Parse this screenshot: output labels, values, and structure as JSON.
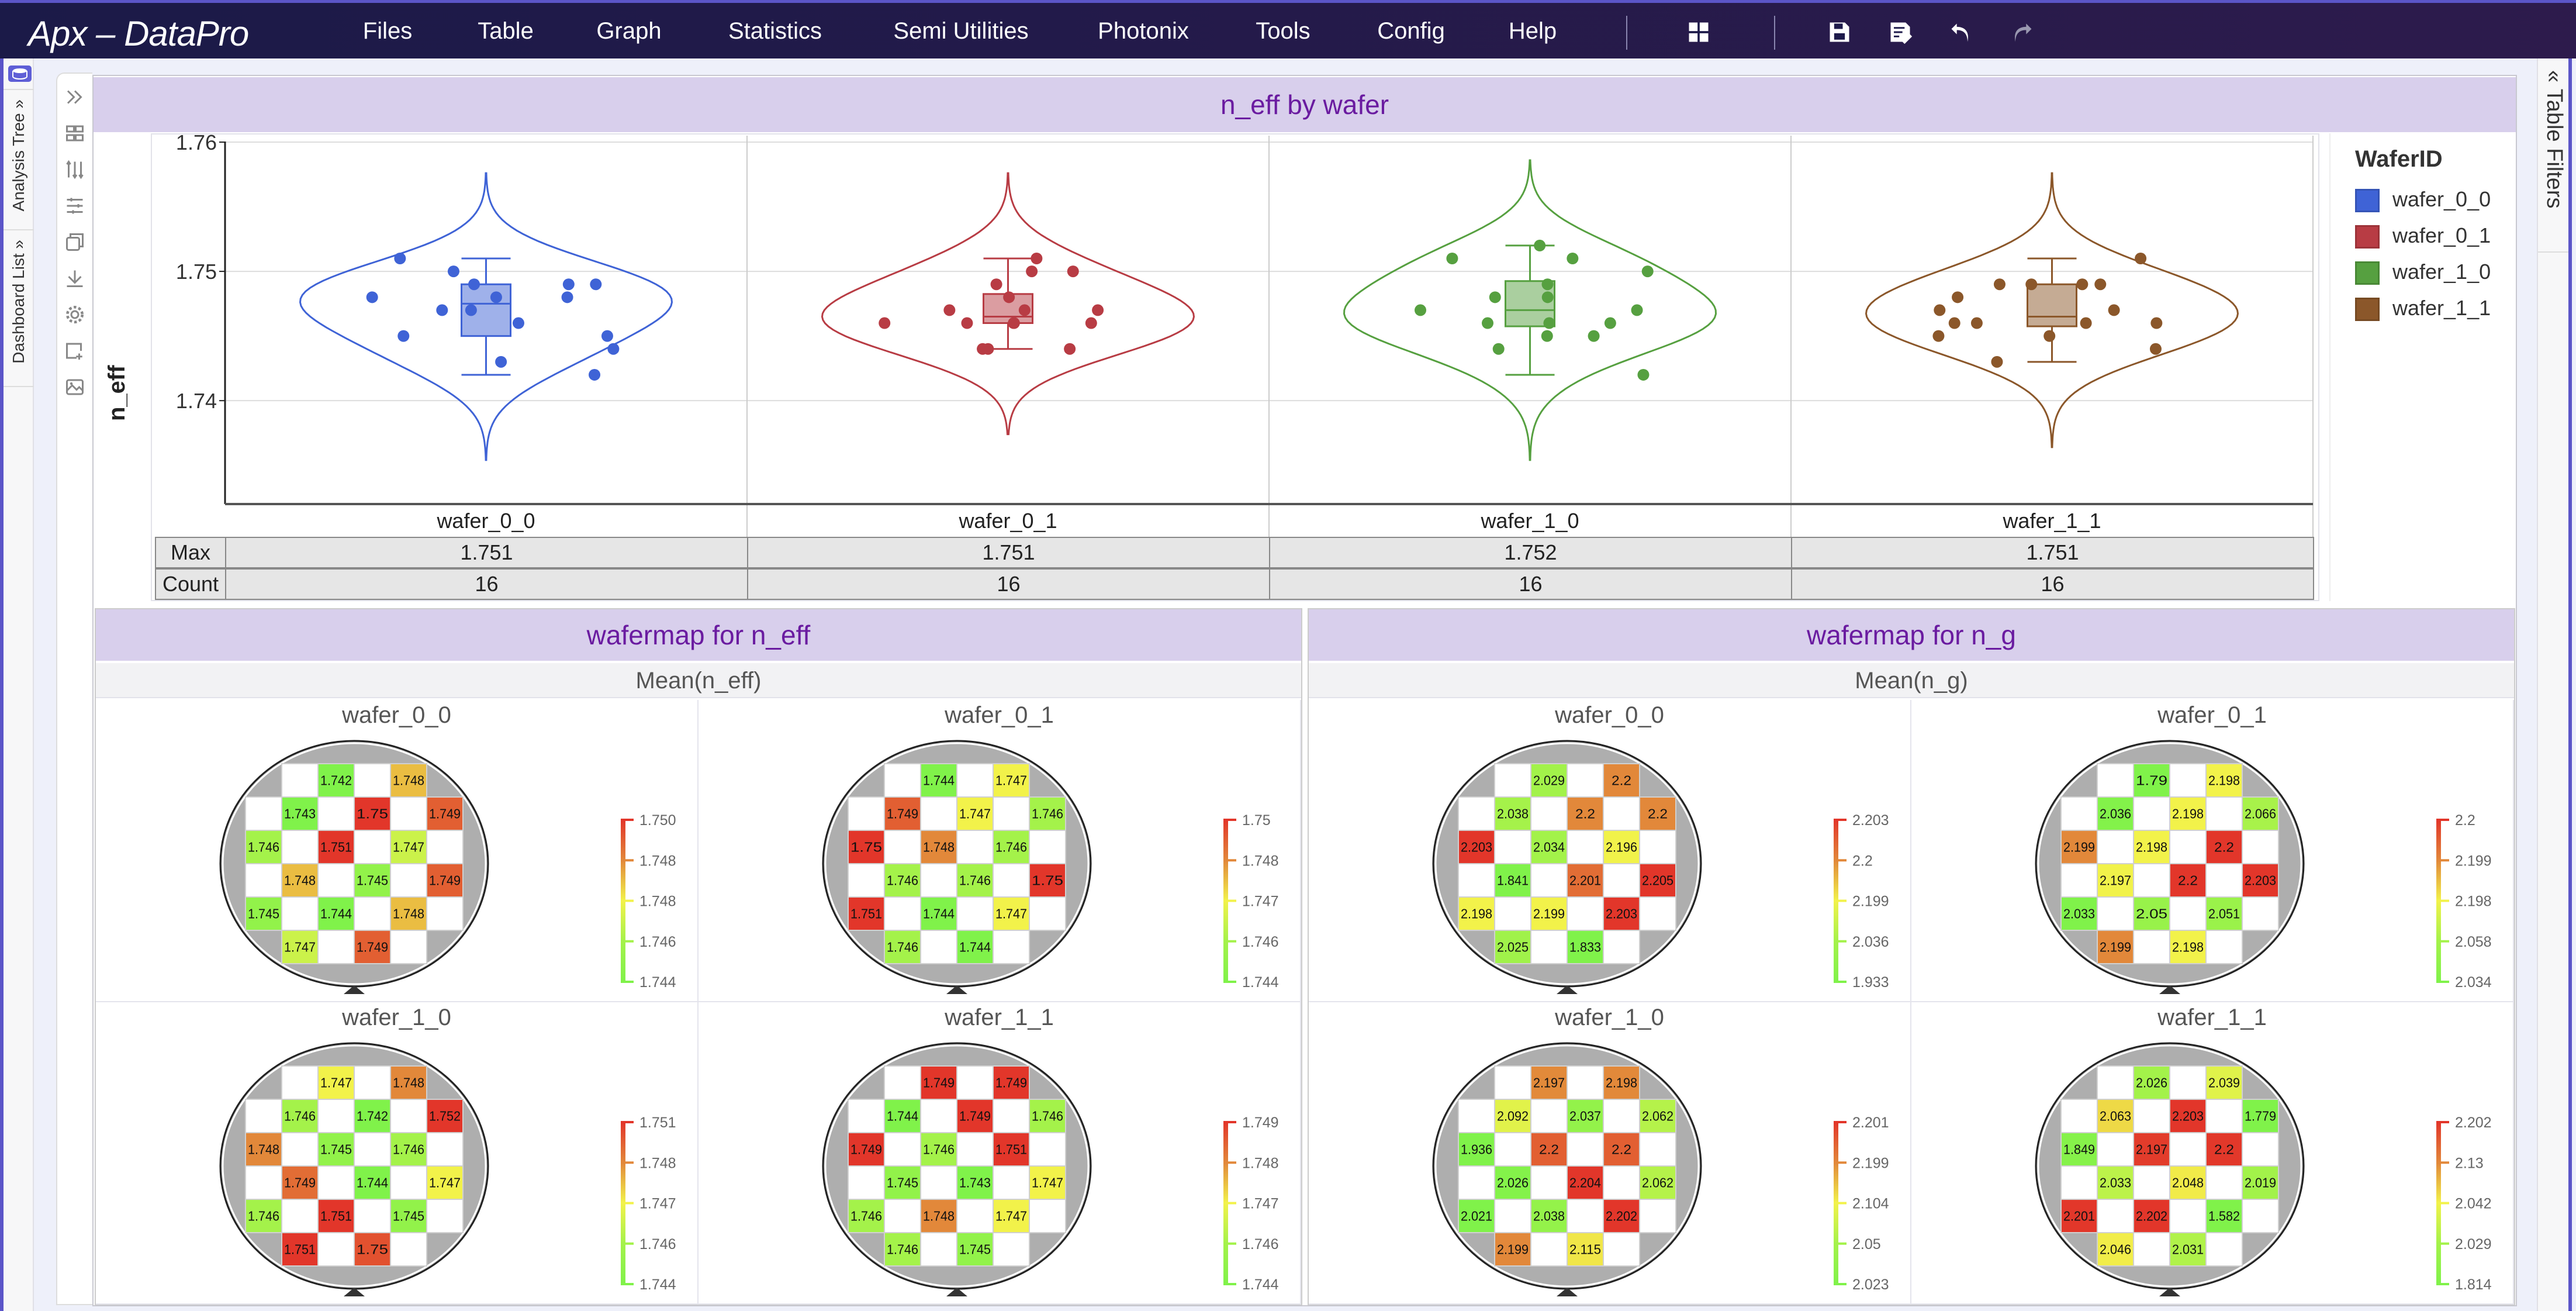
{
  "app": {
    "title": "Apx – DataPro",
    "menu": [
      "Files",
      "Table",
      "Graph",
      "Statistics",
      "Semi Utilities",
      "Photonix",
      "Tools",
      "Config",
      "Help"
    ],
    "toolbar_icons": [
      "layout-icon",
      "save-icon",
      "save-as-icon",
      "undo-icon",
      "redo-icon"
    ]
  },
  "left_tabs": {
    "analysis_tree": "Analysis Tree",
    "dashboard_list": "Dashboard List",
    "expand_glyph": "»"
  },
  "right_tabs": {
    "table_filters": "Table Filters",
    "collapse_glyph": "«"
  },
  "side_toolbar": [
    "expand-icon",
    "grid-icon",
    "sort-icon",
    "filter-icon",
    "copy-icon",
    "download-icon",
    "settings-icon",
    "add-chart-icon",
    "image-icon"
  ],
  "chart_data": [
    {
      "type": "violin",
      "title": "n_eff by wafer",
      "ylabel": "n_eff",
      "ylim": [
        1.732,
        1.7605
      ],
      "yticks": [
        1.74,
        1.75,
        1.76
      ],
      "ytick_labels": [
        "1.74",
        "1.75",
        "1.76"
      ],
      "grid": true,
      "legend_title": "WaferID",
      "legend_position": "right",
      "categories": [
        "wafer_0_0",
        "wafer_0_1",
        "wafer_1_0",
        "wafer_1_1"
      ],
      "series": [
        {
          "name": "wafer_0_0",
          "color": "#3f63d6",
          "values": [
            1.742,
            1.748,
            1.743,
            1.75,
            1.749,
            1.746,
            1.751,
            1.747,
            1.748,
            1.745,
            1.749,
            1.745,
            1.744,
            1.748,
            1.747,
            1.749
          ]
        },
        {
          "name": "wafer_0_1",
          "color": "#b83c44",
          "values": [
            1.744,
            1.747,
            1.749,
            1.747,
            1.746,
            1.75,
            1.748,
            1.746,
            1.746,
            1.746,
            1.75,
            1.751,
            1.744,
            1.747,
            1.746,
            1.744
          ]
        },
        {
          "name": "wafer_1_0",
          "color": "#56a040",
          "values": [
            1.747,
            1.748,
            1.746,
            1.742,
            1.752,
            1.748,
            1.745,
            1.746,
            1.749,
            1.744,
            1.747,
            1.746,
            1.751,
            1.745,
            1.751,
            1.75
          ]
        },
        {
          "name": "wafer_1_1",
          "color": "#8b572a",
          "values": [
            1.749,
            1.749,
            1.744,
            1.749,
            1.746,
            1.749,
            1.746,
            1.751,
            1.745,
            1.743,
            1.747,
            1.746,
            1.748,
            1.747,
            1.746,
            1.745
          ]
        }
      ],
      "summary_table": [
        {
          "label": "Max",
          "values": [
            "1.751",
            "1.751",
            "1.752",
            "1.751"
          ]
        },
        {
          "label": "Count",
          "values": [
            "16",
            "16",
            "16",
            "16"
          ]
        }
      ]
    },
    {
      "type": "heatmap",
      "title": "wafermap for n_eff",
      "subtitle": "Mean(n_eff)",
      "colorscale": [
        "#80f24a",
        "#a4f24a",
        "#f2f24a",
        "#e2883a",
        "#e2362a"
      ],
      "wafers": [
        {
          "name": "wafer_0_0",
          "colorbar_ticks": [
            "1.744",
            "1.746",
            "1.748",
            "1.748",
            "1.750"
          ],
          "grid": [
            [
              null,
              null,
              1.742,
              null,
              1.748,
              null
            ],
            [
              null,
              1.743,
              null,
              1.75,
              null,
              1.749
            ],
            [
              1.746,
              null,
              1.751,
              null,
              1.747,
              null
            ],
            [
              null,
              1.748,
              null,
              1.745,
              null,
              1.749
            ],
            [
              1.745,
              null,
              1.744,
              null,
              1.748,
              null
            ],
            [
              null,
              1.747,
              null,
              1.749,
              null,
              null
            ]
          ]
        },
        {
          "name": "wafer_0_1",
          "colorbar_ticks": [
            "1.744",
            "1.746",
            "1.747",
            "1.748",
            "1.75"
          ],
          "grid": [
            [
              null,
              null,
              1.744,
              null,
              1.747,
              null
            ],
            [
              null,
              1.749,
              null,
              1.747,
              null,
              1.746
            ],
            [
              1.75,
              null,
              1.748,
              null,
              1.746,
              null
            ],
            [
              null,
              1.746,
              null,
              1.746,
              null,
              1.75
            ],
            [
              1.751,
              null,
              1.744,
              null,
              1.747,
              null
            ],
            [
              null,
              1.746,
              null,
              1.744,
              null,
              null
            ]
          ]
        },
        {
          "name": "wafer_1_0",
          "colorbar_ticks": [
            "1.744",
            "1.746",
            "1.747",
            "1.748",
            "1.751"
          ],
          "grid": [
            [
              null,
              null,
              1.747,
              null,
              1.748,
              null
            ],
            [
              null,
              1.746,
              null,
              1.742,
              null,
              1.752
            ],
            [
              1.748,
              null,
              1.745,
              null,
              1.746,
              null
            ],
            [
              null,
              1.749,
              null,
              1.744,
              null,
              1.747
            ],
            [
              1.746,
              null,
              1.751,
              null,
              1.745,
              null
            ],
            [
              null,
              1.751,
              null,
              1.75,
              null,
              null
            ]
          ]
        },
        {
          "name": "wafer_1_1",
          "colorbar_ticks": [
            "1.744",
            "1.746",
            "1.747",
            "1.748",
            "1.749"
          ],
          "grid": [
            [
              null,
              null,
              1.749,
              null,
              1.749,
              null
            ],
            [
              null,
              1.744,
              null,
              1.749,
              null,
              1.746
            ],
            [
              1.749,
              null,
              1.746,
              null,
              1.751,
              null
            ],
            [
              null,
              1.745,
              null,
              1.743,
              null,
              1.747
            ],
            [
              1.746,
              null,
              1.748,
              null,
              1.747,
              null
            ],
            [
              null,
              1.746,
              null,
              1.745,
              null,
              null
            ]
          ]
        }
      ]
    },
    {
      "type": "heatmap",
      "title": "wafermap for n_g",
      "subtitle": "Mean(n_g)",
      "colorscale": [
        "#80f24a",
        "#a4f24a",
        "#f2f24a",
        "#e2883a",
        "#e2362a"
      ],
      "wafers": [
        {
          "name": "wafer_0_0",
          "colorbar_ticks": [
            "1.933",
            "2.036",
            "2.199",
            "2.2",
            "2.203"
          ],
          "grid": [
            [
              null,
              null,
              2.029,
              null,
              2.2,
              null
            ],
            [
              null,
              2.038,
              null,
              2.2,
              null,
              2.2
            ],
            [
              2.203,
              null,
              2.034,
              null,
              2.196,
              null
            ],
            [
              null,
              1.841,
              null,
              2.201,
              null,
              2.205
            ],
            [
              2.198,
              null,
              2.199,
              null,
              2.203,
              null
            ],
            [
              null,
              2.025,
              null,
              1.833,
              null,
              null
            ]
          ]
        },
        {
          "name": "wafer_0_1",
          "colorbar_ticks": [
            "2.034",
            "2.058",
            "2.198",
            "2.199",
            "2.2"
          ],
          "grid": [
            [
              null,
              null,
              1.79,
              null,
              2.198,
              null
            ],
            [
              null,
              2.036,
              null,
              2.198,
              null,
              2.066
            ],
            [
              2.199,
              null,
              2.198,
              null,
              2.2,
              null
            ],
            [
              null,
              2.197,
              null,
              2.2,
              null,
              2.203
            ],
            [
              2.033,
              null,
              2.05,
              null,
              2.051,
              null
            ],
            [
              null,
              2.199,
              null,
              2.198,
              null,
              null
            ]
          ]
        },
        {
          "name": "wafer_1_0",
          "colorbar_ticks": [
            "2.023",
            "2.05",
            "2.104",
            "2.199",
            "2.201"
          ],
          "grid": [
            [
              null,
              null,
              2.197,
              null,
              2.198,
              null
            ],
            [
              null,
              2.092,
              null,
              2.037,
              null,
              2.062
            ],
            [
              1.936,
              null,
              2.2,
              null,
              2.2,
              null
            ],
            [
              null,
              2.026,
              null,
              2.204,
              null,
              2.062
            ],
            [
              2.021,
              null,
              2.038,
              null,
              2.202,
              null
            ],
            [
              null,
              2.199,
              null,
              2.115,
              null,
              null
            ]
          ]
        },
        {
          "name": "wafer_1_1",
          "colorbar_ticks": [
            "1.814",
            "2.029",
            "2.042",
            "2.13",
            "2.202"
          ],
          "grid": [
            [
              null,
              null,
              2.026,
              null,
              2.039,
              null
            ],
            [
              null,
              2.063,
              null,
              2.203,
              null,
              1.779
            ],
            [
              1.849,
              null,
              2.197,
              null,
              2.2,
              null
            ],
            [
              null,
              2.033,
              null,
              2.048,
              null,
              2.019
            ],
            [
              2.201,
              null,
              2.202,
              null,
              1.582,
              null
            ],
            [
              null,
              2.046,
              null,
              2.031,
              null,
              null
            ]
          ]
        }
      ]
    }
  ]
}
